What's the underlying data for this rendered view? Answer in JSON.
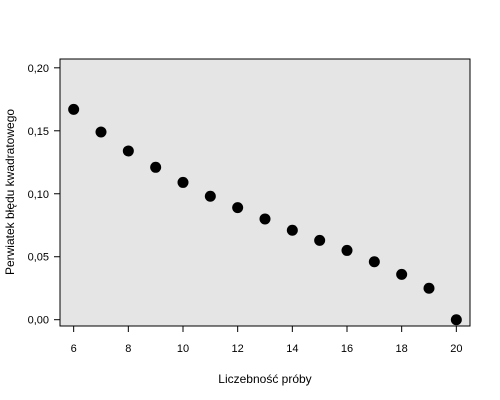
{
  "chart_data": {
    "type": "scatter",
    "title": "",
    "xlabel": "Liczebność próby",
    "ylabel": "Perwiatek błędu kwadratowego",
    "xlim": [
      5.5,
      20.5
    ],
    "ylim": [
      -0.005,
      0.207
    ],
    "x_ticks": [
      6,
      8,
      10,
      12,
      14,
      16,
      18,
      20
    ],
    "x_tick_labels": [
      "6",
      "8",
      "10",
      "12",
      "14",
      "16",
      "18",
      "20"
    ],
    "y_ticks": [
      0.0,
      0.05,
      0.1,
      0.15,
      0.2
    ],
    "y_tick_labels": [
      "0,00",
      "0,05",
      "0,10",
      "0,15",
      "0,20"
    ],
    "grid": false,
    "legend": "none",
    "series": [
      {
        "x": [
          6,
          7,
          8,
          9,
          10,
          11,
          12,
          13,
          14,
          15,
          16,
          17,
          18,
          19,
          20
        ],
        "y": [
          0.167,
          0.149,
          0.134,
          0.121,
          0.109,
          0.098,
          0.089,
          0.08,
          0.071,
          0.063,
          0.055,
          0.046,
          0.036,
          0.025,
          0.0
        ]
      }
    ],
    "colors": {
      "plot_background": "#e5e5e5",
      "points": "#000000",
      "axes": "#000000"
    }
  }
}
